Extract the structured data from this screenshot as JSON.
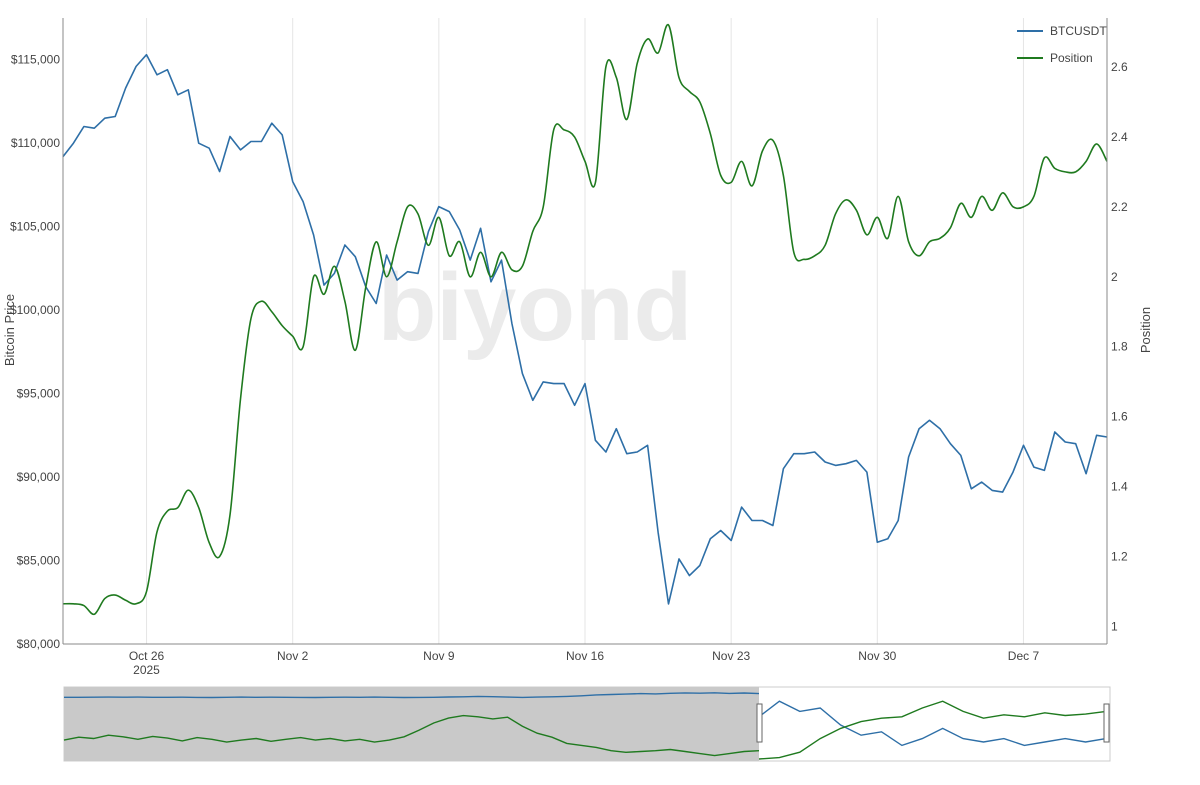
{
  "chart_data": {
    "type": "line",
    "title": "",
    "watermark": "biyond",
    "x_start": "2025-10-22",
    "x_end": "2025-12-11",
    "x_ticks": [
      {
        "date": "2025-10-26",
        "label": "Oct 26",
        "sublabel": "2025"
      },
      {
        "date": "2025-11-02",
        "label": "Nov 2",
        "sublabel": ""
      },
      {
        "date": "2025-11-09",
        "label": "Nov 9",
        "sublabel": ""
      },
      {
        "date": "2025-11-16",
        "label": "Nov 16",
        "sublabel": ""
      },
      {
        "date": "2025-11-23",
        "label": "Nov 23",
        "sublabel": ""
      },
      {
        "date": "2025-11-30",
        "label": "Nov 30",
        "sublabel": ""
      },
      {
        "date": "2025-12-07",
        "label": "Dec 7",
        "sublabel": ""
      }
    ],
    "y_left": {
      "label": "Bitcoin Price",
      "range": [
        80000,
        117500
      ],
      "ticks": [
        {
          "value": 80000,
          "label": "$80,000"
        },
        {
          "value": 85000,
          "label": "$85,000"
        },
        {
          "value": 90000,
          "label": "$90,000"
        },
        {
          "value": 95000,
          "label": "$95,000"
        },
        {
          "value": 100000,
          "label": "$100,000"
        },
        {
          "value": 105000,
          "label": "$105,000"
        },
        {
          "value": 110000,
          "label": "$110,000"
        },
        {
          "value": 115000,
          "label": "$115,000"
        }
      ]
    },
    "y_right": {
      "label": "Position",
      "range": [
        0.95,
        2.74
      ],
      "ticks": [
        {
          "value": 1,
          "label": "1"
        },
        {
          "value": 1.2,
          "label": "1.2"
        },
        {
          "value": 1.4,
          "label": "1.4"
        },
        {
          "value": 1.6,
          "label": "1.6"
        },
        {
          "value": 1.8,
          "label": "1.8"
        },
        {
          "value": 2,
          "label": "2"
        },
        {
          "value": 2.2,
          "label": "2.2"
        },
        {
          "value": 2.4,
          "label": "2.4"
        },
        {
          "value": 2.6,
          "label": "2.6"
        }
      ]
    },
    "grid": "vertical",
    "legend": "top-right",
    "series": [
      {
        "name": "BTCUSDT",
        "axis": "left",
        "color": "#2e6fa7",
        "points": [
          [
            "2025-10-22T00:00",
            109200
          ],
          [
            "2025-10-22T12:00",
            110000
          ],
          [
            "2025-10-23T00:00",
            111000
          ],
          [
            "2025-10-23T12:00",
            110900
          ],
          [
            "2025-10-24T00:00",
            111500
          ],
          [
            "2025-10-24T12:00",
            111600
          ],
          [
            "2025-10-25T00:00",
            113300
          ],
          [
            "2025-10-25T12:00",
            114600
          ],
          [
            "2025-10-26T00:00",
            115300
          ],
          [
            "2025-10-26T12:00",
            114100
          ],
          [
            "2025-10-27T00:00",
            114400
          ],
          [
            "2025-10-27T12:00",
            112900
          ],
          [
            "2025-10-28T00:00",
            113200
          ],
          [
            "2025-10-28T12:00",
            110000
          ],
          [
            "2025-10-29T00:00",
            109700
          ],
          [
            "2025-10-29T12:00",
            108300
          ],
          [
            "2025-10-30T00:00",
            110400
          ],
          [
            "2025-10-30T12:00",
            109600
          ],
          [
            "2025-10-31T00:00",
            110100
          ],
          [
            "2025-10-31T12:00",
            110100
          ],
          [
            "2025-11-01T00:00",
            111200
          ],
          [
            "2025-11-01T12:00",
            110500
          ],
          [
            "2025-11-02T00:00",
            107700
          ],
          [
            "2025-11-02T12:00",
            106500
          ],
          [
            "2025-11-03T00:00",
            104500
          ],
          [
            "2025-11-03T12:00",
            101500
          ],
          [
            "2025-11-04T00:00",
            102200
          ],
          [
            "2025-11-04T12:00",
            103900
          ],
          [
            "2025-11-05T00:00",
            103200
          ],
          [
            "2025-11-05T12:00",
            101400
          ],
          [
            "2025-11-06T00:00",
            100400
          ],
          [
            "2025-11-06T12:00",
            103300
          ],
          [
            "2025-11-07T00:00",
            101800
          ],
          [
            "2025-11-07T12:00",
            102300
          ],
          [
            "2025-11-08T00:00",
            102200
          ],
          [
            "2025-11-08T12:00",
            104700
          ],
          [
            "2025-11-09T00:00",
            106200
          ],
          [
            "2025-11-09T12:00",
            105900
          ],
          [
            "2025-11-10T00:00",
            104800
          ],
          [
            "2025-11-10T12:00",
            103000
          ],
          [
            "2025-11-11T00:00",
            104900
          ],
          [
            "2025-11-11T12:00",
            101700
          ],
          [
            "2025-11-12T00:00",
            103000
          ],
          [
            "2025-11-12T12:00",
            99200
          ],
          [
            "2025-11-13T00:00",
            96200
          ],
          [
            "2025-11-13T12:00",
            94600
          ],
          [
            "2025-11-14T00:00",
            95700
          ],
          [
            "2025-11-14T12:00",
            95600
          ],
          [
            "2025-11-15T00:00",
            95600
          ],
          [
            "2025-11-15T12:00",
            94300
          ],
          [
            "2025-11-16T00:00",
            95600
          ],
          [
            "2025-11-16T12:00",
            92200
          ],
          [
            "2025-11-17T00:00",
            91500
          ],
          [
            "2025-11-17T12:00",
            92900
          ],
          [
            "2025-11-18T00:00",
            91400
          ],
          [
            "2025-11-18T12:00",
            91500
          ],
          [
            "2025-11-19T00:00",
            91900
          ],
          [
            "2025-11-19T12:00",
            86700
          ],
          [
            "2025-11-20T00:00",
            82400
          ],
          [
            "2025-11-20T12:00",
            85100
          ],
          [
            "2025-11-21T00:00",
            84100
          ],
          [
            "2025-11-21T12:00",
            84700
          ],
          [
            "2025-11-22T00:00",
            86300
          ],
          [
            "2025-11-22T12:00",
            86800
          ],
          [
            "2025-11-23T00:00",
            86200
          ],
          [
            "2025-11-23T12:00",
            88200
          ],
          [
            "2025-11-24T00:00",
            87400
          ],
          [
            "2025-11-24T12:00",
            87400
          ],
          [
            "2025-11-25T00:00",
            87100
          ],
          [
            "2025-11-25T12:00",
            90500
          ],
          [
            "2025-11-26T00:00",
            91400
          ],
          [
            "2025-11-26T12:00",
            91400
          ],
          [
            "2025-11-27T00:00",
            91500
          ],
          [
            "2025-11-27T12:00",
            90900
          ],
          [
            "2025-11-28T00:00",
            90700
          ],
          [
            "2025-11-28T12:00",
            90800
          ],
          [
            "2025-11-29T00:00",
            91000
          ],
          [
            "2025-11-29T12:00",
            90300
          ],
          [
            "2025-11-30T00:00",
            86100
          ],
          [
            "2025-11-30T12:00",
            86300
          ],
          [
            "2025-12-01T00:00",
            87400
          ],
          [
            "2025-12-01T12:00",
            91200
          ],
          [
            "2025-12-02T00:00",
            92900
          ],
          [
            "2025-12-02T12:00",
            93400
          ],
          [
            "2025-12-03T00:00",
            92900
          ],
          [
            "2025-12-03T12:00",
            92000
          ],
          [
            "2025-12-04T00:00",
            91300
          ],
          [
            "2025-12-04T12:00",
            89300
          ],
          [
            "2025-12-05T00:00",
            89700
          ],
          [
            "2025-12-05T12:00",
            89200
          ],
          [
            "2025-12-06T00:00",
            89100
          ],
          [
            "2025-12-06T12:00",
            90300
          ],
          [
            "2025-12-07T00:00",
            91900
          ],
          [
            "2025-12-07T12:00",
            90600
          ],
          [
            "2025-12-08T00:00",
            90400
          ],
          [
            "2025-12-08T12:00",
            92700
          ],
          [
            "2025-12-09T00:00",
            92100
          ],
          [
            "2025-12-09T12:00",
            92000
          ],
          [
            "2025-12-10T00:00",
            90200
          ],
          [
            "2025-12-10T12:00",
            92500
          ],
          [
            "2025-12-11T00:00",
            92400
          ]
        ]
      },
      {
        "name": "Position",
        "axis": "right",
        "color": "#1f7a1f",
        "points": [
          [
            "2025-10-22T00:00",
            1.065
          ],
          [
            "2025-10-22T12:00",
            1.065
          ],
          [
            "2025-10-23T00:00",
            1.06
          ],
          [
            "2025-10-23T12:00",
            1.035
          ],
          [
            "2025-10-24T00:00",
            1.08
          ],
          [
            "2025-10-24T12:00",
            1.09
          ],
          [
            "2025-10-25T00:00",
            1.075
          ],
          [
            "2025-10-25T12:00",
            1.065
          ],
          [
            "2025-10-26T00:00",
            1.1
          ],
          [
            "2025-10-26T12:00",
            1.27
          ],
          [
            "2025-10-27T00:00",
            1.33
          ],
          [
            "2025-10-27T12:00",
            1.34
          ],
          [
            "2025-10-28T00:00",
            1.39
          ],
          [
            "2025-10-28T12:00",
            1.34
          ],
          [
            "2025-10-29T00:00",
            1.24
          ],
          [
            "2025-10-29T12:00",
            1.2
          ],
          [
            "2025-10-30T00:00",
            1.32
          ],
          [
            "2025-10-30T12:00",
            1.65
          ],
          [
            "2025-10-31T00:00",
            1.88
          ],
          [
            "2025-10-31T12:00",
            1.93
          ],
          [
            "2025-11-01T00:00",
            1.9
          ],
          [
            "2025-11-01T12:00",
            1.86
          ],
          [
            "2025-11-02T00:00",
            1.83
          ],
          [
            "2025-11-02T12:00",
            1.8
          ],
          [
            "2025-11-03T00:00",
            2.0
          ],
          [
            "2025-11-03T12:00",
            1.95
          ],
          [
            "2025-11-04T00:00",
            2.03
          ],
          [
            "2025-11-04T12:00",
            1.93
          ],
          [
            "2025-11-05T00:00",
            1.79
          ],
          [
            "2025-11-05T12:00",
            1.97
          ],
          [
            "2025-11-06T00:00",
            2.1
          ],
          [
            "2025-11-06T12:00",
            2.0
          ],
          [
            "2025-11-07T00:00",
            2.1
          ],
          [
            "2025-11-07T12:00",
            2.2
          ],
          [
            "2025-11-08T00:00",
            2.18
          ],
          [
            "2025-11-08T12:00",
            2.09
          ],
          [
            "2025-11-09T00:00",
            2.17
          ],
          [
            "2025-11-09T12:00",
            2.06
          ],
          [
            "2025-11-10T00:00",
            2.1
          ],
          [
            "2025-11-10T12:00",
            2.0
          ],
          [
            "2025-11-11T00:00",
            2.07
          ],
          [
            "2025-11-11T12:00",
            2.0
          ],
          [
            "2025-11-12T00:00",
            2.07
          ],
          [
            "2025-11-12T12:00",
            2.02
          ],
          [
            "2025-11-13T00:00",
            2.03
          ],
          [
            "2025-11-13T12:00",
            2.13
          ],
          [
            "2025-11-14T00:00",
            2.2
          ],
          [
            "2025-11-14T12:00",
            2.42
          ],
          [
            "2025-11-15T00:00",
            2.42
          ],
          [
            "2025-11-15T12:00",
            2.4
          ],
          [
            "2025-11-16T00:00",
            2.33
          ],
          [
            "2025-11-16T12:00",
            2.27
          ],
          [
            "2025-11-17T00:00",
            2.6
          ],
          [
            "2025-11-17T12:00",
            2.57
          ],
          [
            "2025-11-18T00:00",
            2.45
          ],
          [
            "2025-11-18T12:00",
            2.61
          ],
          [
            "2025-11-19T00:00",
            2.68
          ],
          [
            "2025-11-19T12:00",
            2.64
          ],
          [
            "2025-11-20T00:00",
            2.72
          ],
          [
            "2025-11-20T12:00",
            2.57
          ],
          [
            "2025-11-21T00:00",
            2.53
          ],
          [
            "2025-11-21T12:00",
            2.5
          ],
          [
            "2025-11-22T00:00",
            2.41
          ],
          [
            "2025-11-22T12:00",
            2.29
          ],
          [
            "2025-11-23T00:00",
            2.27
          ],
          [
            "2025-11-23T12:00",
            2.33
          ],
          [
            "2025-11-24T00:00",
            2.26
          ],
          [
            "2025-11-24T12:00",
            2.36
          ],
          [
            "2025-11-25T00:00",
            2.39
          ],
          [
            "2025-11-25T12:00",
            2.29
          ],
          [
            "2025-11-26T00:00",
            2.07
          ],
          [
            "2025-11-26T12:00",
            2.05
          ],
          [
            "2025-11-27T00:00",
            2.06
          ],
          [
            "2025-11-27T12:00",
            2.09
          ],
          [
            "2025-11-28T00:00",
            2.18
          ],
          [
            "2025-11-28T12:00",
            2.22
          ],
          [
            "2025-11-29T00:00",
            2.19
          ],
          [
            "2025-11-29T12:00",
            2.12
          ],
          [
            "2025-11-30T00:00",
            2.17
          ],
          [
            "2025-11-30T12:00",
            2.11
          ],
          [
            "2025-12-01T00:00",
            2.23
          ],
          [
            "2025-12-01T12:00",
            2.1
          ],
          [
            "2025-12-02T00:00",
            2.06
          ],
          [
            "2025-12-02T12:00",
            2.1
          ],
          [
            "2025-12-03T00:00",
            2.11
          ],
          [
            "2025-12-03T12:00",
            2.14
          ],
          [
            "2025-12-04T00:00",
            2.21
          ],
          [
            "2025-12-04T12:00",
            2.17
          ],
          [
            "2025-12-05T00:00",
            2.23
          ],
          [
            "2025-12-05T12:00",
            2.19
          ],
          [
            "2025-12-06T00:00",
            2.24
          ],
          [
            "2025-12-06T12:00",
            2.2
          ],
          [
            "2025-12-07T00:00",
            2.2
          ],
          [
            "2025-12-07T12:00",
            2.23
          ],
          [
            "2025-12-08T00:00",
            2.34
          ],
          [
            "2025-12-08T12:00",
            2.31
          ],
          [
            "2025-12-09T00:00",
            2.3
          ],
          [
            "2025-12-09T12:00",
            2.3
          ],
          [
            "2025-12-10T00:00",
            2.33
          ],
          [
            "2025-12-10T12:00",
            2.38
          ],
          [
            "2025-12-11T00:00",
            2.33
          ]
        ]
      }
    ],
    "navigator": {
      "selected_range": [
        "2025-10-22",
        "2025-12-11"
      ],
      "btc_overview": [
        0.08,
        0.07,
        0.09,
        0.1,
        0.09,
        0.11,
        0.08,
        0.07,
        0.09,
        0.06,
        0.05,
        0.08,
        0.1,
        0.07,
        0.09,
        0.08,
        0.06,
        0.04,
        0.07,
        0.09,
        0.08,
        0.1,
        0.07,
        0.05,
        0.06,
        0.08,
        0.12,
        0.15,
        0.2,
        0.16,
        0.1,
        0.06,
        0.1,
        0.14,
        0.2,
        0.3,
        0.42,
        0.48,
        0.55,
        0.62,
        0.58,
        0.66,
        0.72,
        0.68,
        0.73,
        0.65,
        0.7,
        0.62
      ],
      "pos_overview": [
        0.38,
        0.45,
        0.42,
        0.5,
        0.46,
        0.4,
        0.47,
        0.43,
        0.36,
        0.44,
        0.4,
        0.33,
        0.38,
        0.42,
        0.35,
        0.4,
        0.44,
        0.38,
        0.42,
        0.36,
        0.4,
        0.33,
        0.38,
        0.46,
        0.62,
        0.8,
        0.92,
        0.98,
        0.95,
        0.9,
        0.94,
        0.72,
        0.55,
        0.45,
        0.3,
        0.25,
        0.2,
        0.12,
        0.08,
        0.1,
        0.12,
        0.15,
        0.1,
        0.05,
        0.0,
        0.05,
        0.1,
        0.12
      ],
      "right_btc_overview": [
        0.62,
        0.85,
        0.7,
        0.75,
        0.5,
        0.35,
        0.4,
        0.2,
        0.3,
        0.45,
        0.3,
        0.25,
        0.3,
        0.2,
        0.25,
        0.3,
        0.25,
        0.3
      ],
      "right_pos_overview": [
        0.0,
        0.02,
        0.1,
        0.3,
        0.45,
        0.55,
        0.6,
        0.62,
        0.75,
        0.85,
        0.7,
        0.6,
        0.65,
        0.62,
        0.68,
        0.64,
        0.66,
        0.7
      ]
    }
  }
}
